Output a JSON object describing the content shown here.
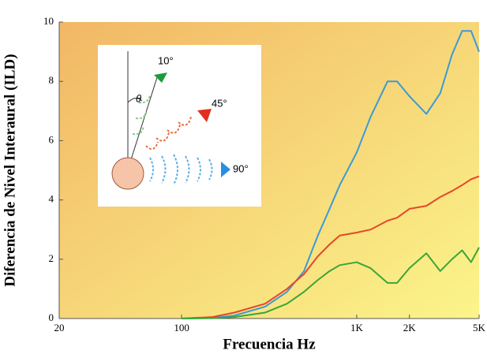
{
  "chart_data": {
    "type": "line",
    "xlabel": "Frecuencia Hz",
    "ylabel": "Diferencia de Nivel Interaural (ILD)",
    "xscale": "log",
    "xlim": [
      20,
      5000
    ],
    "ylim": [
      0,
      10
    ],
    "xticks": [
      20,
      100,
      {
        "value": 1000,
        "label": "1K"
      },
      {
        "value": 2000,
        "label": "2K"
      },
      {
        "value": 5000,
        "label": "5K"
      }
    ],
    "yticks": [
      0,
      2,
      4,
      6,
      8,
      10
    ],
    "x": [
      100,
      150,
      200,
      300,
      400,
      500,
      600,
      700,
      800,
      1000,
      1200,
      1500,
      1700,
      2000,
      2500,
      3000,
      3500,
      4000,
      4500,
      5000
    ],
    "series": [
      {
        "name": "90°",
        "color": "#3a9ad9",
        "values": [
          0,
          0.02,
          0.1,
          0.4,
          0.9,
          1.6,
          2.8,
          3.7,
          4.5,
          5.6,
          6.8,
          8.0,
          8.0,
          7.5,
          6.9,
          7.6,
          8.9,
          9.7,
          9.7,
          9.0
        ]
      },
      {
        "name": "45°",
        "color": "#e8452a",
        "values": [
          0,
          0.05,
          0.2,
          0.5,
          1.0,
          1.5,
          2.1,
          2.5,
          2.8,
          2.9,
          3.0,
          3.3,
          3.4,
          3.7,
          3.8,
          4.1,
          4.3,
          4.5,
          4.7,
          4.8
        ]
      },
      {
        "name": "10°",
        "color": "#3aa53a",
        "values": [
          0,
          0.01,
          0.05,
          0.2,
          0.5,
          0.9,
          1.3,
          1.6,
          1.8,
          1.9,
          1.7,
          1.2,
          1.2,
          1.7,
          2.2,
          1.6,
          2.0,
          2.3,
          1.9,
          2.4
        ]
      }
    ],
    "inset_angle_label": "θ"
  }
}
